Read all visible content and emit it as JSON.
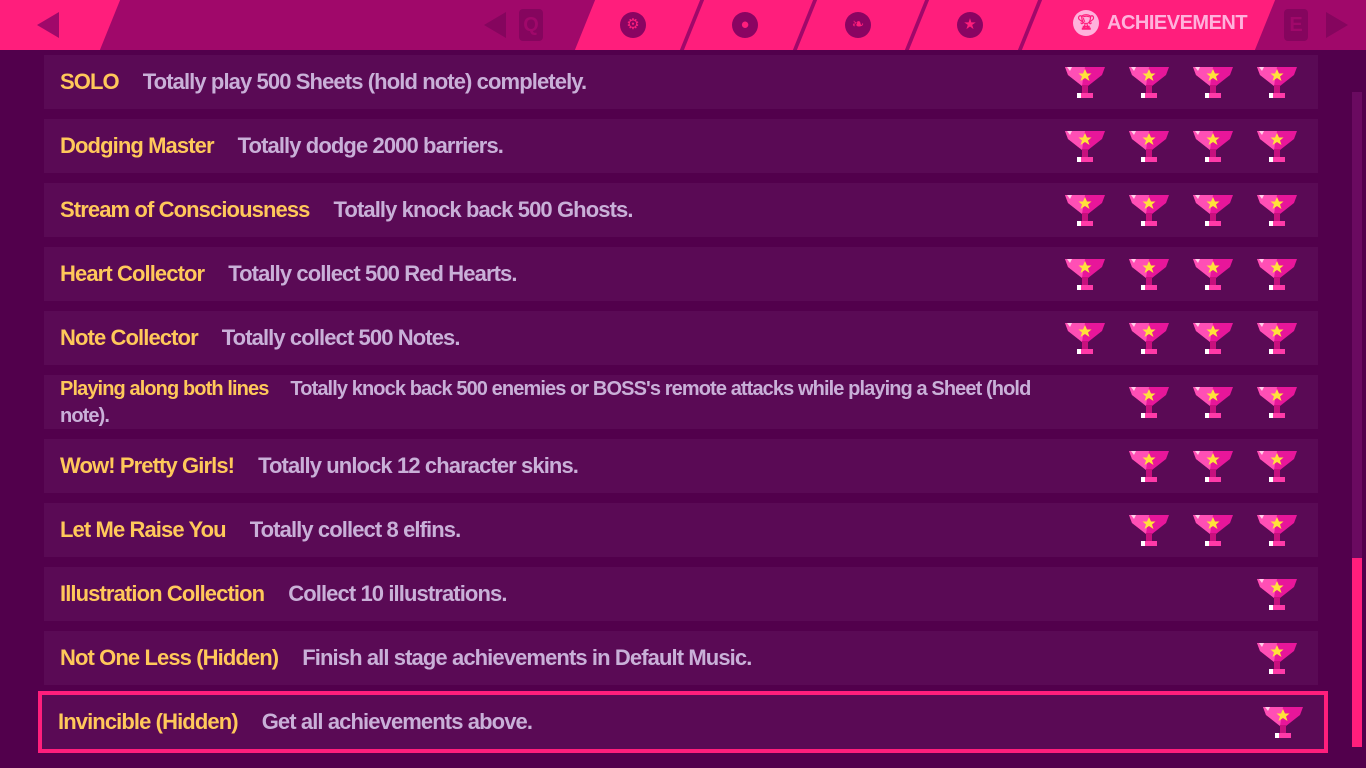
{
  "header": {
    "tabs": [
      {
        "icon": "gear-icon",
        "label": ""
      },
      {
        "icon": "person-icon",
        "label": ""
      },
      {
        "icon": "leaf-icon",
        "label": ""
      },
      {
        "icon": "star-icon",
        "label": ""
      },
      {
        "icon": "trophy-icon",
        "label": "ACHIEVEMENT",
        "active": true
      }
    ],
    "prev_key": "Q",
    "next_key": "E"
  },
  "achievements": [
    {
      "title": "SOLO",
      "desc": "Totally play 500 Sheets (hold note) completely.",
      "trophies": 4
    },
    {
      "title": "Dodging Master",
      "desc": "Totally dodge 2000 barriers.",
      "trophies": 4
    },
    {
      "title": "Stream of Consciousness",
      "desc": "Totally knock back 500 Ghosts.",
      "trophies": 4
    },
    {
      "title": "Heart Collector",
      "desc": "Totally collect 500 Red Hearts.",
      "trophies": 4
    },
    {
      "title": "Note Collector",
      "desc": "Totally collect 500 Notes.",
      "trophies": 4
    },
    {
      "title": "Playing along both lines",
      "desc": "Totally knock back 500 enemies or BOSS's remote attacks while playing a Sheet (hold note).",
      "trophies": 3
    },
    {
      "title": "Wow! Pretty Girls!",
      "desc": "Totally unlock 12 character skins.",
      "trophies": 3
    },
    {
      "title": "Let Me Raise You",
      "desc": "Totally collect 8 elfins.",
      "trophies": 3
    },
    {
      "title": "Illustration Collection",
      "desc": "Collect 10 illustrations.",
      "trophies": 1
    },
    {
      "title": "Not One Less (Hidden)",
      "desc": "Finish all stage achievements in Default Music.",
      "trophies": 1
    },
    {
      "title": "Invincible (Hidden)",
      "desc": "Get all achievements above.",
      "trophies": 1,
      "selected": true
    }
  ],
  "scroll": {
    "position_percent": 100
  },
  "colors": {
    "accent": "#ff1e7c",
    "title": "#ffc85a",
    "desc": "#c9b0d8",
    "bg": "#52004c"
  }
}
